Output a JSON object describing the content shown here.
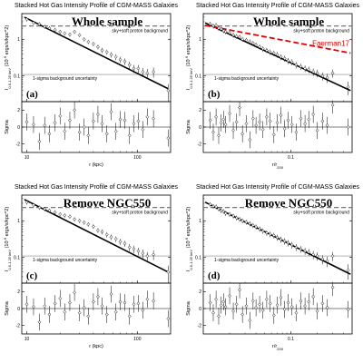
{
  "chart_data": [
    {
      "type": "scatter",
      "panel": "(a)",
      "title": "Stacked Hot Gas Intensity Profile of CGM-MASS Galaxies",
      "big_label": "Whole sample",
      "xlabel": "r (kpc)",
      "ylabel": "I_{0.5-1.25 keV} (10^{-9} ergs/s/kpc^2)",
      "xscale": "log",
      "yscale": "log",
      "xlim": [
        9,
        200
      ],
      "ylim": [
        0.02,
        5
      ],
      "xticks": [
        10,
        100
      ],
      "yticks": [
        0.1,
        1
      ],
      "x_tick_labels": [
        "10",
        "100"
      ],
      "y_tick_labels": [
        "0.1",
        "1"
      ],
      "sky_level": 2.3,
      "sky_label": "sky+soft proton background",
      "unc_level": 0.11,
      "unc_label": "1-sigma background uncertainty",
      "model_line": {
        "x": [
          9.5,
          190
        ],
        "y": [
          4.0,
          0.045
        ]
      },
      "points": {
        "x": [
          10,
          11.5,
          13,
          14.5,
          16,
          18,
          20,
          22,
          24.5,
          27,
          30,
          33,
          36,
          40,
          44,
          48,
          53,
          58,
          64,
          70,
          77,
          85,
          93,
          102,
          112,
          123,
          140,
          190
        ],
        "y": [
          3.5,
          2.8,
          2.6,
          2.2,
          2.0,
          1.8,
          1.6,
          1.45,
          1.35,
          1.6,
          1.3,
          1.0,
          0.85,
          0.75,
          0.62,
          0.5,
          0.45,
          0.38,
          0.33,
          0.28,
          0.25,
          0.2,
          0.16,
          0.16,
          0.13,
          0.12,
          0.13,
          0.04
        ],
        "err": [
          0.45,
          0.35,
          0.3,
          0.28,
          0.25,
          0.22,
          0.2,
          0.18,
          0.17,
          0.2,
          0.16,
          0.13,
          0.11,
          0.1,
          0.09,
          0.08,
          0.07,
          0.065,
          0.06,
          0.05,
          0.05,
          0.045,
          0.04,
          0.04,
          0.035,
          0.035,
          0.04,
          0.02
        ]
      },
      "residual": {
        "ylabel": "Sigma",
        "ylim": [
          -3,
          3
        ],
        "yticks": [
          -2,
          0,
          2
        ],
        "y_tick_labels": [
          "-2",
          "0",
          "2"
        ],
        "x": [
          10,
          11.5,
          13,
          14.5,
          16,
          18,
          20,
          22,
          24.5,
          27,
          30,
          33,
          36,
          40,
          44,
          48,
          53,
          58,
          64,
          70,
          77,
          85,
          93,
          102,
          112,
          123,
          140,
          190
        ],
        "y": [
          0.6,
          0.3,
          -1.7,
          0.2,
          -0.8,
          0.5,
          1.3,
          -0.5,
          0.8,
          2.0,
          -0.6,
          0.0,
          -1.0,
          0.7,
          1.5,
          0.4,
          -0.8,
          1.8,
          -0.5,
          0.9,
          0.8,
          -1.0,
          0.4,
          0.7,
          -0.3,
          1.2,
          1.0,
          -1.3
        ],
        "err": [
          1.0,
          1.0,
          1.0,
          1.0,
          1.0,
          1.0,
          1.0,
          1.0,
          1.0,
          1.0,
          1.0,
          1.0,
          1.0,
          1.0,
          1.0,
          1.0,
          1.0,
          1.0,
          1.0,
          1.0,
          1.0,
          1.0,
          1.0,
          1.0,
          1.0,
          1.0,
          1.0,
          1.0
        ]
      }
    },
    {
      "type": "scatter",
      "panel": "(b)",
      "title": "Stacked Hot Gas Intensity Profile of CGM-MASS Galaxies",
      "big_label": "Whole sample",
      "xlabel": "r/r_{200}",
      "ylabel": "I_{0.5-1.25 keV} (10^{-9} ergs/s/kpc^2)",
      "xscale": "log",
      "yscale": "log",
      "xlim": [
        0.01,
        0.5
      ],
      "ylim": [
        0.02,
        5
      ],
      "xticks": [
        0.1
      ],
      "yticks": [
        0.1,
        1
      ],
      "x_tick_labels": [
        "0.1"
      ],
      "y_tick_labels": [
        "0.1",
        "1"
      ],
      "sky_level": 2.3,
      "sky_label": "sky+soft proton background",
      "unc_level": 0.11,
      "unc_label": "1-sigma background uncertainty",
      "model_line": {
        "x": [
          0.0105,
          0.48
        ],
        "y": [
          2.8,
          0.04
        ]
      },
      "extra_line": {
        "name": "Faerman17",
        "x": [
          0.0105,
          0.48
        ],
        "y": [
          2.4,
          0.42
        ]
      },
      "points": {
        "x": [
          0.012,
          0.013,
          0.014,
          0.015,
          0.016,
          0.017,
          0.018,
          0.02,
          0.022,
          0.024,
          0.026,
          0.028,
          0.031,
          0.034,
          0.037,
          0.04,
          0.044,
          0.048,
          0.053,
          0.058,
          0.064,
          0.07,
          0.077,
          0.085,
          0.093,
          0.103,
          0.115,
          0.13,
          0.145,
          0.16,
          0.18,
          0.2,
          0.23,
          0.26,
          0.3,
          0.45
        ],
        "y": [
          2.6,
          2.3,
          2.4,
          2.0,
          1.9,
          1.7,
          1.6,
          1.5,
          1.3,
          1.2,
          1.15,
          1.0,
          0.95,
          0.85,
          0.78,
          0.7,
          0.62,
          0.55,
          0.5,
          0.45,
          0.42,
          0.38,
          0.33,
          0.3,
          0.26,
          0.24,
          0.2,
          0.18,
          0.16,
          0.15,
          0.13,
          0.12,
          0.1,
          0.09,
          0.12,
          0.05
        ],
        "err": [
          0.4,
          0.35,
          0.35,
          0.3,
          0.28,
          0.25,
          0.24,
          0.22,
          0.2,
          0.18,
          0.17,
          0.15,
          0.14,
          0.13,
          0.12,
          0.11,
          0.1,
          0.09,
          0.08,
          0.075,
          0.07,
          0.065,
          0.06,
          0.055,
          0.05,
          0.045,
          0.04,
          0.035,
          0.033,
          0.03,
          0.03,
          0.028,
          0.025,
          0.025,
          0.03,
          0.02
        ]
      },
      "residual": {
        "ylabel": "Sigma",
        "ylim": [
          -3,
          3
        ],
        "yticks": [
          -2,
          0,
          2
        ],
        "y_tick_labels": [
          "-2",
          "0",
          "2"
        ],
        "x": [
          0.012,
          0.013,
          0.014,
          0.015,
          0.016,
          0.017,
          0.018,
          0.02,
          0.022,
          0.024,
          0.026,
          0.028,
          0.031,
          0.034,
          0.037,
          0.04,
          0.044,
          0.048,
          0.053,
          0.058,
          0.064,
          0.07,
          0.077,
          0.085,
          0.093,
          0.103,
          0.115,
          0.13,
          0.145,
          0.16,
          0.18,
          0.2,
          0.23,
          0.26,
          0.3,
          0.45
        ],
        "y": [
          0.8,
          -0.6,
          1.2,
          -1.0,
          0.5,
          0.9,
          0.3,
          1.6,
          -0.4,
          0.6,
          2.3,
          -0.8,
          0.4,
          -1.5,
          1.0,
          0.2,
          0.6,
          -0.3,
          1.2,
          0.7,
          -0.9,
          0.5,
          1.4,
          -0.2,
          0.8,
          0.3,
          -0.6,
          1.0,
          0.4,
          0.9,
          1.5,
          -0.4,
          0.7,
          0.2,
          2.6,
          0.0
        ],
        "err": [
          1.0,
          1.0,
          1.0,
          1.0,
          1.0,
          1.0,
          1.0,
          1.0,
          1.0,
          1.0,
          1.0,
          1.0,
          1.0,
          1.0,
          1.0,
          1.0,
          1.0,
          1.0,
          1.0,
          1.0,
          1.0,
          1.0,
          1.0,
          1.0,
          1.0,
          1.0,
          1.0,
          1.0,
          1.0,
          1.0,
          1.0,
          1.0,
          1.0,
          1.0,
          1.0,
          1.0
        ]
      }
    },
    {
      "type": "scatter",
      "panel": "(c)",
      "title": "Stacked Hot Gas Intensity Profile of CGM-MASS Galaxies",
      "big_label": "Remove NGC550",
      "xlabel": "r (kpc)",
      "ylabel": "I_{0.5-1.25 keV} (10^{-9} ergs/s/kpc^2)",
      "xscale": "log",
      "yscale": "log",
      "xlim": [
        9,
        200
      ],
      "ylim": [
        0.02,
        5
      ],
      "xticks": [
        10,
        100
      ],
      "yticks": [
        0.1,
        1
      ],
      "x_tick_labels": [
        "10",
        "100"
      ],
      "y_tick_labels": [
        "0.1",
        "1"
      ],
      "sky_level": 2.3,
      "sky_label": "sky+soft proton background",
      "unc_level": 0.11,
      "unc_label": "1-sigma background uncertainty",
      "model_line": {
        "x": [
          9.5,
          190
        ],
        "y": [
          3.8,
          0.04
        ]
      },
      "points": {
        "x": [
          10,
          11.5,
          13,
          14.5,
          16,
          18,
          20,
          22,
          24.5,
          27,
          30,
          33,
          36,
          40,
          44,
          48,
          53,
          58,
          64,
          70,
          77,
          85,
          93,
          102,
          112,
          123,
          140,
          190
        ],
        "y": [
          3.2,
          2.7,
          2.3,
          2.1,
          1.9,
          1.7,
          1.5,
          1.4,
          1.3,
          1.1,
          1.0,
          0.9,
          0.8,
          0.7,
          0.55,
          0.5,
          0.42,
          0.36,
          0.32,
          0.27,
          0.24,
          0.19,
          0.17,
          0.15,
          0.13,
          0.11,
          0.12,
          0.04
        ],
        "err": [
          0.45,
          0.35,
          0.3,
          0.28,
          0.25,
          0.22,
          0.2,
          0.18,
          0.17,
          0.15,
          0.14,
          0.12,
          0.11,
          0.1,
          0.08,
          0.075,
          0.07,
          0.06,
          0.055,
          0.05,
          0.045,
          0.04,
          0.04,
          0.035,
          0.035,
          0.03,
          0.035,
          0.02
        ]
      },
      "residual": {
        "ylabel": "Sigma",
        "ylim": [
          -3,
          3
        ],
        "yticks": [
          -2,
          0,
          2
        ],
        "y_tick_labels": [
          "-2",
          "0",
          "2"
        ],
        "x": [
          10,
          11.5,
          13,
          14.5,
          16,
          18,
          20,
          22,
          24.5,
          27,
          30,
          33,
          36,
          40,
          44,
          48,
          53,
          58,
          64,
          70,
          77,
          85,
          93,
          102,
          112,
          123,
          140,
          190
        ],
        "y": [
          0.5,
          0.2,
          -1.6,
          0.3,
          -0.7,
          0.6,
          1.2,
          -0.4,
          0.7,
          1.9,
          -0.5,
          0.1,
          -0.9,
          0.8,
          1.4,
          0.3,
          -0.7,
          1.7,
          -0.4,
          0.8,
          0.7,
          -0.9,
          0.5,
          0.6,
          -0.2,
          1.1,
          0.9,
          -1.2
        ],
        "err": [
          1.0,
          1.0,
          1.0,
          1.0,
          1.0,
          1.0,
          1.0,
          1.0,
          1.0,
          1.0,
          1.0,
          1.0,
          1.0,
          1.0,
          1.0,
          1.0,
          1.0,
          1.0,
          1.0,
          1.0,
          1.0,
          1.0,
          1.0,
          1.0,
          1.0,
          1.0,
          1.0,
          1.0
        ]
      }
    },
    {
      "type": "scatter",
      "panel": "(d)",
      "title": "Stacked Hot Gas Intensity Profile of CGM-MASS Galaxies",
      "big_label": "Remove NGC550",
      "xlabel": "r/r_{200}",
      "ylabel": "I_{0.5-1.25 keV} (10^{-9} ergs/s/kpc^2)",
      "xscale": "log",
      "yscale": "log",
      "xlim": [
        0.01,
        0.5
      ],
      "ylim": [
        0.02,
        5
      ],
      "xticks": [
        0.1
      ],
      "yticks": [
        0.1,
        1
      ],
      "x_tick_labels": [
        "0.1"
      ],
      "y_tick_labels": [
        "0.1",
        "1"
      ],
      "sky_level": 2.3,
      "sky_label": "sky+soft proton background",
      "unc_level": 0.11,
      "unc_label": "1-sigma background uncertainty",
      "model_line": {
        "x": [
          0.0105,
          0.48
        ],
        "y": [
          3.2,
          0.035
        ]
      },
      "points": {
        "x": [
          0.012,
          0.013,
          0.014,
          0.015,
          0.016,
          0.017,
          0.018,
          0.02,
          0.022,
          0.024,
          0.026,
          0.028,
          0.031,
          0.034,
          0.037,
          0.04,
          0.044,
          0.048,
          0.053,
          0.058,
          0.064,
          0.07,
          0.077,
          0.085,
          0.093,
          0.103,
          0.115,
          0.13,
          0.145,
          0.16,
          0.18,
          0.2,
          0.23,
          0.26,
          0.3,
          0.45
        ],
        "y": [
          2.8,
          2.5,
          2.4,
          2.1,
          1.9,
          1.8,
          1.6,
          1.5,
          1.35,
          1.2,
          1.1,
          1.0,
          0.92,
          0.83,
          0.75,
          0.68,
          0.6,
          0.53,
          0.47,
          0.43,
          0.4,
          0.35,
          0.31,
          0.28,
          0.25,
          0.22,
          0.19,
          0.17,
          0.15,
          0.14,
          0.12,
          0.11,
          0.09,
          0.08,
          0.11,
          0.045
        ],
        "err": [
          0.4,
          0.35,
          0.35,
          0.3,
          0.28,
          0.25,
          0.24,
          0.22,
          0.2,
          0.18,
          0.17,
          0.15,
          0.14,
          0.13,
          0.12,
          0.11,
          0.1,
          0.09,
          0.08,
          0.075,
          0.07,
          0.065,
          0.06,
          0.055,
          0.05,
          0.045,
          0.04,
          0.035,
          0.033,
          0.03,
          0.03,
          0.028,
          0.025,
          0.025,
          0.03,
          0.02
        ]
      },
      "residual": {
        "ylabel": "Sigma",
        "ylim": [
          -3,
          3
        ],
        "yticks": [
          -2,
          0,
          2
        ],
        "y_tick_labels": [
          "-2",
          "0",
          "2"
        ],
        "x": [
          0.012,
          0.013,
          0.014,
          0.015,
          0.016,
          0.017,
          0.018,
          0.02,
          0.022,
          0.024,
          0.026,
          0.028,
          0.031,
          0.034,
          0.037,
          0.04,
          0.044,
          0.048,
          0.053,
          0.058,
          0.064,
          0.07,
          0.077,
          0.085,
          0.093,
          0.103,
          0.115,
          0.13,
          0.145,
          0.16,
          0.18,
          0.2,
          0.23,
          0.26,
          0.3,
          0.45
        ],
        "y": [
          0.7,
          -0.5,
          1.1,
          -0.9,
          0.4,
          0.8,
          0.2,
          1.5,
          -0.3,
          0.5,
          2.2,
          -0.7,
          0.3,
          -1.4,
          0.9,
          0.1,
          0.5,
          -0.2,
          1.1,
          0.6,
          -0.8,
          0.4,
          1.3,
          -0.1,
          0.7,
          0.2,
          -0.5,
          0.9,
          0.3,
          0.8,
          1.4,
          -0.3,
          0.6,
          0.1,
          2.5,
          -0.1
        ],
        "err": [
          1.0,
          1.0,
          1.0,
          1.0,
          1.0,
          1.0,
          1.0,
          1.0,
          1.0,
          1.0,
          1.0,
          1.0,
          1.0,
          1.0,
          1.0,
          1.0,
          1.0,
          1.0,
          1.0,
          1.0,
          1.0,
          1.0,
          1.0,
          1.0,
          1.0,
          1.0,
          1.0,
          1.0,
          1.0,
          1.0,
          1.0,
          1.0,
          1.0,
          1.0,
          1.0,
          1.0
        ]
      }
    }
  ],
  "colors": {
    "model": "#000000",
    "faerman": "#e00000",
    "points": "#000000"
  }
}
